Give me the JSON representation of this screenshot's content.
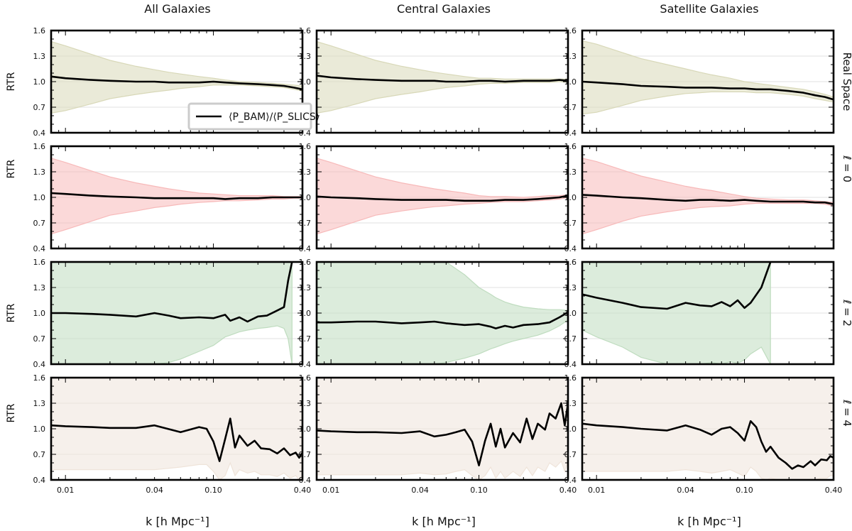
{
  "chart_data": {
    "type": "line",
    "figure_kind": "3x4 grid of ratio-to-reference line plots with shaded uncertainty bands",
    "column_titles": [
      "All Galaxies",
      "Central Galaxies",
      "Satellite Galaxies"
    ],
    "row_labels": [
      "Real Space",
      "ℓ = 0",
      "ℓ = 2",
      "ℓ = 4"
    ],
    "ylabel": "RTR",
    "xlabel": "k [h Mpc⁻¹]",
    "xscale": "log",
    "xlim": [
      0.008,
      0.4
    ],
    "ylim": [
      0.4,
      1.6
    ],
    "yticks": [
      0.4,
      0.7,
      1.0,
      1.3,
      1.6
    ],
    "ytick_labels": [
      "0.4",
      "0.7",
      "1.0",
      "1.3",
      "1.6"
    ],
    "xticks": [
      0.01,
      0.04,
      0.1,
      0.4
    ],
    "xtick_labels": [
      "0.01",
      "0.04",
      "0.10",
      "0.40"
    ],
    "legend": {
      "label": "⟨P_BAM⟩/⟨P_SLICS⟩",
      "location": "lower-right of first panel"
    },
    "row_colors": [
      "#d8d8b8",
      "#f7b9b9",
      "#bfdcbf",
      "#efe4da"
    ],
    "line_color": "#000000",
    "panels": [
      [
        {
          "x": [
            0.008,
            0.01,
            0.015,
            0.02,
            0.03,
            0.04,
            0.05,
            0.06,
            0.08,
            0.1,
            0.12,
            0.15,
            0.2,
            0.25,
            0.3,
            0.35,
            0.4
          ],
          "y": [
            1.06,
            1.04,
            1.02,
            1.01,
            1.0,
            1.0,
            0.99,
            0.99,
            0.99,
            1.0,
            0.99,
            0.98,
            0.97,
            0.96,
            0.95,
            0.93,
            0.91
          ],
          "upper": [
            1.47,
            1.42,
            1.32,
            1.25,
            1.18,
            1.14,
            1.11,
            1.09,
            1.06,
            1.04,
            1.02,
            1.0,
            0.99,
            0.98,
            0.97,
            0.96,
            0.95
          ],
          "lower": [
            0.63,
            0.66,
            0.74,
            0.8,
            0.85,
            0.88,
            0.9,
            0.92,
            0.94,
            0.96,
            0.96,
            0.96,
            0.95,
            0.94,
            0.93,
            0.91,
            0.89
          ]
        },
        {
          "x": [
            0.008,
            0.01,
            0.015,
            0.02,
            0.03,
            0.04,
            0.05,
            0.06,
            0.08,
            0.1,
            0.12,
            0.15,
            0.2,
            0.25,
            0.3,
            0.35,
            0.4
          ],
          "y": [
            1.07,
            1.05,
            1.03,
            1.02,
            1.01,
            1.01,
            1.01,
            1.0,
            1.0,
            1.01,
            1.01,
            1.0,
            1.01,
            1.01,
            1.01,
            1.02,
            1.01
          ],
          "upper": [
            1.47,
            1.42,
            1.32,
            1.25,
            1.18,
            1.14,
            1.11,
            1.09,
            1.06,
            1.04,
            1.04,
            1.03,
            1.03,
            1.03,
            1.03,
            1.03,
            1.03
          ],
          "lower": [
            0.63,
            0.66,
            0.74,
            0.8,
            0.85,
            0.88,
            0.91,
            0.93,
            0.95,
            0.97,
            0.98,
            0.98,
            0.99,
            0.99,
            0.99,
            1.0,
            0.99
          ]
        },
        {
          "x": [
            0.008,
            0.01,
            0.015,
            0.02,
            0.03,
            0.04,
            0.05,
            0.06,
            0.08,
            0.1,
            0.12,
            0.15,
            0.2,
            0.25,
            0.3,
            0.35,
            0.4
          ],
          "y": [
            1.0,
            0.99,
            0.97,
            0.95,
            0.94,
            0.93,
            0.93,
            0.93,
            0.92,
            0.92,
            0.91,
            0.91,
            0.89,
            0.87,
            0.84,
            0.82,
            0.79
          ],
          "upper": [
            1.48,
            1.44,
            1.34,
            1.27,
            1.2,
            1.15,
            1.11,
            1.08,
            1.04,
            1.0,
            0.98,
            0.96,
            0.93,
            0.91,
            0.88,
            0.85,
            0.82
          ],
          "lower": [
            0.62,
            0.64,
            0.72,
            0.78,
            0.83,
            0.86,
            0.87,
            0.88,
            0.88,
            0.88,
            0.87,
            0.87,
            0.85,
            0.83,
            0.8,
            0.78,
            0.76
          ]
        }
      ],
      [
        {
          "x": [
            0.008,
            0.01,
            0.015,
            0.02,
            0.03,
            0.04,
            0.05,
            0.06,
            0.08,
            0.1,
            0.12,
            0.15,
            0.2,
            0.25,
            0.3,
            0.35,
            0.4
          ],
          "y": [
            1.05,
            1.04,
            1.02,
            1.01,
            1.0,
            0.99,
            0.99,
            0.99,
            0.99,
            0.99,
            0.98,
            0.99,
            0.99,
            1.0,
            1.0,
            1.0,
            1.0
          ],
          "upper": [
            1.46,
            1.41,
            1.31,
            1.24,
            1.17,
            1.13,
            1.1,
            1.08,
            1.05,
            1.04,
            1.03,
            1.02,
            1.02,
            1.02,
            1.01,
            1.01,
            1.01
          ],
          "lower": [
            0.57,
            0.62,
            0.72,
            0.79,
            0.84,
            0.88,
            0.9,
            0.92,
            0.94,
            0.95,
            0.96,
            0.96,
            0.97,
            0.98,
            0.98,
            0.99,
            0.99
          ]
        },
        {
          "x": [
            0.008,
            0.01,
            0.015,
            0.02,
            0.03,
            0.04,
            0.05,
            0.06,
            0.08,
            0.1,
            0.12,
            0.15,
            0.2,
            0.25,
            0.3,
            0.35,
            0.4
          ],
          "y": [
            1.01,
            1.0,
            0.99,
            0.98,
            0.97,
            0.97,
            0.97,
            0.97,
            0.96,
            0.96,
            0.96,
            0.97,
            0.97,
            0.98,
            0.99,
            1.0,
            1.02
          ],
          "upper": [
            1.46,
            1.41,
            1.31,
            1.24,
            1.17,
            1.13,
            1.1,
            1.08,
            1.05,
            1.02,
            1.01,
            1.01,
            1.0,
            1.01,
            1.02,
            1.02,
            1.03
          ],
          "lower": [
            0.57,
            0.62,
            0.72,
            0.79,
            0.84,
            0.87,
            0.89,
            0.9,
            0.92,
            0.93,
            0.94,
            0.95,
            0.95,
            0.96,
            0.97,
            0.98,
            1.0
          ]
        },
        {
          "x": [
            0.008,
            0.01,
            0.015,
            0.02,
            0.03,
            0.04,
            0.05,
            0.06,
            0.08,
            0.1,
            0.12,
            0.15,
            0.2,
            0.25,
            0.3,
            0.35,
            0.4
          ],
          "y": [
            1.03,
            1.02,
            1.0,
            0.99,
            0.97,
            0.96,
            0.97,
            0.97,
            0.96,
            0.97,
            0.96,
            0.95,
            0.95,
            0.95,
            0.94,
            0.94,
            0.92
          ],
          "upper": [
            1.46,
            1.42,
            1.32,
            1.25,
            1.18,
            1.13,
            1.1,
            1.08,
            1.04,
            1.01,
            0.99,
            0.98,
            0.97,
            0.97,
            0.96,
            0.95,
            0.94
          ],
          "lower": [
            0.57,
            0.62,
            0.72,
            0.78,
            0.83,
            0.86,
            0.88,
            0.89,
            0.9,
            0.92,
            0.93,
            0.93,
            0.93,
            0.93,
            0.93,
            0.92,
            0.9
          ]
        }
      ],
      [
        {
          "x": [
            0.008,
            0.01,
            0.015,
            0.02,
            0.03,
            0.04,
            0.05,
            0.06,
            0.08,
            0.1,
            0.12,
            0.13,
            0.15,
            0.17,
            0.2,
            0.23,
            0.27,
            0.3,
            0.32,
            0.34
          ],
          "y": [
            1.0,
            1.0,
            0.99,
            0.98,
            0.96,
            1.0,
            0.97,
            0.94,
            0.95,
            0.94,
            0.98,
            0.91,
            0.95,
            0.9,
            0.96,
            0.97,
            1.03,
            1.07,
            1.38,
            1.6
          ],
          "upper": [
            1.6,
            1.6,
            1.6,
            1.6,
            1.6,
            1.6,
            1.6,
            1.6,
            1.6,
            1.6,
            1.6,
            1.6,
            1.6,
            1.6,
            1.6,
            1.6,
            1.6,
            1.6,
            1.6,
            1.6
          ],
          "lower": [
            0.4,
            0.4,
            0.4,
            0.4,
            0.4,
            0.4,
            0.42,
            0.46,
            0.55,
            0.62,
            0.72,
            0.74,
            0.78,
            0.8,
            0.82,
            0.83,
            0.85,
            0.82,
            0.7,
            0.4
          ]
        },
        {
          "x": [
            0.008,
            0.01,
            0.015,
            0.02,
            0.03,
            0.04,
            0.05,
            0.06,
            0.08,
            0.1,
            0.12,
            0.13,
            0.15,
            0.17,
            0.2,
            0.25,
            0.3,
            0.35,
            0.4
          ],
          "y": [
            0.89,
            0.89,
            0.9,
            0.9,
            0.88,
            0.89,
            0.9,
            0.88,
            0.86,
            0.87,
            0.84,
            0.82,
            0.85,
            0.83,
            0.86,
            0.87,
            0.89,
            0.95,
            1.01
          ],
          "upper": [
            1.6,
            1.6,
            1.6,
            1.6,
            1.6,
            1.6,
            1.6,
            1.6,
            1.45,
            1.3,
            1.22,
            1.18,
            1.13,
            1.1,
            1.07,
            1.05,
            1.04,
            1.04,
            1.03
          ],
          "lower": [
            0.4,
            0.4,
            0.4,
            0.4,
            0.4,
            0.4,
            0.4,
            0.42,
            0.47,
            0.52,
            0.58,
            0.6,
            0.64,
            0.67,
            0.7,
            0.74,
            0.79,
            0.85,
            0.92
          ]
        },
        {
          "x": [
            0.008,
            0.01,
            0.015,
            0.02,
            0.03,
            0.04,
            0.05,
            0.06,
            0.07,
            0.08,
            0.09,
            0.1,
            0.11,
            0.13,
            0.15
          ],
          "y": [
            1.22,
            1.18,
            1.12,
            1.07,
            1.05,
            1.12,
            1.09,
            1.08,
            1.13,
            1.08,
            1.15,
            1.06,
            1.12,
            1.3,
            1.6
          ],
          "upper": [
            1.6,
            1.6,
            1.6,
            1.6,
            1.6,
            1.6,
            1.6,
            1.6,
            1.6,
            1.6,
            1.6,
            1.6,
            1.6,
            1.6,
            1.6
          ],
          "lower": [
            0.8,
            0.72,
            0.6,
            0.48,
            0.4,
            0.4,
            0.4,
            0.42,
            0.4,
            0.43,
            0.41,
            0.45,
            0.52,
            0.6,
            0.4
          ]
        }
      ],
      [
        {
          "x": [
            0.008,
            0.01,
            0.015,
            0.02,
            0.03,
            0.04,
            0.06,
            0.08,
            0.09,
            0.1,
            0.11,
            0.12,
            0.13,
            0.14,
            0.15,
            0.17,
            0.19,
            0.21,
            0.24,
            0.27,
            0.3,
            0.33,
            0.36,
            0.38,
            0.4
          ],
          "y": [
            1.04,
            1.03,
            1.02,
            1.01,
            1.01,
            1.04,
            0.96,
            1.02,
            1.0,
            0.85,
            0.62,
            0.88,
            1.12,
            0.78,
            0.92,
            0.8,
            0.86,
            0.77,
            0.76,
            0.71,
            0.77,
            0.69,
            0.72,
            0.66,
            0.72
          ],
          "upper": [
            1.6,
            1.6,
            1.6,
            1.6,
            1.6,
            1.6,
            1.6,
            1.6,
            1.6,
            1.6,
            1.6,
            1.6,
            1.6,
            1.6,
            1.6,
            1.6,
            1.6,
            1.6,
            1.6,
            1.6,
            1.6,
            1.6,
            1.6,
            1.6,
            1.6
          ],
          "lower": [
            0.52,
            0.52,
            0.52,
            0.52,
            0.52,
            0.52,
            0.55,
            0.58,
            0.58,
            0.5,
            0.4,
            0.45,
            0.6,
            0.45,
            0.52,
            0.48,
            0.5,
            0.46,
            0.46,
            0.44,
            0.48,
            0.42,
            0.45,
            0.4,
            0.45
          ]
        },
        {
          "x": [
            0.008,
            0.01,
            0.015,
            0.02,
            0.03,
            0.04,
            0.05,
            0.06,
            0.07,
            0.08,
            0.09,
            0.1,
            0.11,
            0.12,
            0.13,
            0.14,
            0.15,
            0.17,
            0.19,
            0.21,
            0.23,
            0.25,
            0.28,
            0.3,
            0.33,
            0.36,
            0.38,
            0.4
          ],
          "y": [
            0.98,
            0.97,
            0.96,
            0.96,
            0.95,
            0.97,
            0.91,
            0.93,
            0.96,
            0.99,
            0.85,
            0.57,
            0.86,
            1.06,
            0.79,
            1.0,
            0.78,
            0.95,
            0.84,
            1.12,
            0.88,
            1.06,
            0.99,
            1.18,
            1.12,
            1.3,
            1.04,
            1.3
          ],
          "upper": [
            1.6,
            1.6,
            1.6,
            1.6,
            1.6,
            1.6,
            1.6,
            1.6,
            1.6,
            1.6,
            1.6,
            1.6,
            1.6,
            1.6,
            1.6,
            1.6,
            1.6,
            1.6,
            1.6,
            1.6,
            1.6,
            1.6,
            1.6,
            1.6,
            1.6,
            1.6,
            1.6,
            1.6
          ],
          "lower": [
            0.46,
            0.46,
            0.46,
            0.46,
            0.46,
            0.48,
            0.46,
            0.47,
            0.5,
            0.52,
            0.45,
            0.4,
            0.45,
            0.55,
            0.42,
            0.5,
            0.42,
            0.5,
            0.44,
            0.55,
            0.45,
            0.55,
            0.5,
            0.6,
            0.55,
            0.62,
            0.5,
            0.62
          ]
        },
        {
          "x": [
            0.008,
            0.01,
            0.015,
            0.02,
            0.03,
            0.04,
            0.05,
            0.06,
            0.07,
            0.08,
            0.09,
            0.1,
            0.11,
            0.12,
            0.13,
            0.14,
            0.15,
            0.17,
            0.19,
            0.21,
            0.23,
            0.25,
            0.28,
            0.3,
            0.33,
            0.36,
            0.38,
            0.4
          ],
          "y": [
            1.06,
            1.04,
            1.02,
            1.0,
            0.98,
            1.04,
            0.99,
            0.93,
            1.0,
            1.02,
            0.95,
            0.86,
            1.09,
            1.02,
            0.85,
            0.73,
            0.79,
            0.66,
            0.6,
            0.53,
            0.57,
            0.55,
            0.62,
            0.57,
            0.64,
            0.63,
            0.68,
            0.66
          ],
          "upper": [
            1.6,
            1.6,
            1.6,
            1.6,
            1.6,
            1.6,
            1.6,
            1.6,
            1.6,
            1.6,
            1.6,
            1.6,
            1.6,
            1.6,
            1.6,
            1.6,
            1.6,
            1.6,
            1.6,
            1.6,
            1.6,
            1.6,
            1.6,
            1.6,
            1.6,
            1.6,
            1.6,
            1.6
          ],
          "lower": [
            0.5,
            0.5,
            0.5,
            0.5,
            0.5,
            0.52,
            0.5,
            0.48,
            0.5,
            0.52,
            0.48,
            0.44,
            0.55,
            0.5,
            0.42,
            0.4,
            0.42,
            0.4,
            0.4,
            0.4,
            0.4,
            0.4,
            0.4,
            0.4,
            0.42,
            0.42,
            0.45,
            0.45
          ]
        }
      ]
    ]
  }
}
